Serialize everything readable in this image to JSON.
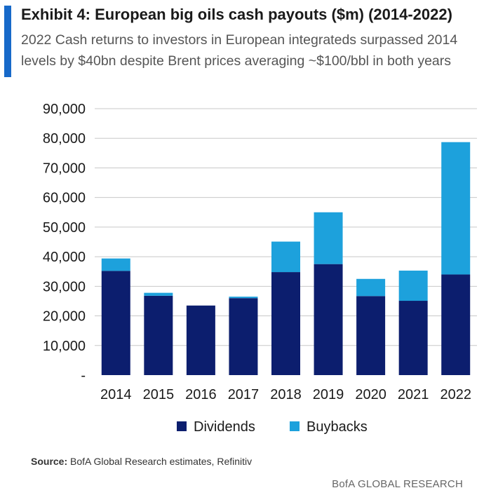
{
  "header": {
    "title": "Exhibit 4: European big oils cash payouts ($m) (2014-2022)",
    "subtitle": "2022 Cash returns to investors in European integrateds surpassed 2014 levels by $40bn despite Brent prices averaging ~$100/bbl in both years"
  },
  "footer": {
    "source_label": "Source:",
    "source_text": "BofA Global Research estimates, Refinitiv",
    "brand": "BofA GLOBAL RESEARCH"
  },
  "colors": {
    "accent": "#1769c9",
    "dividends": "#0c1e6e",
    "buybacks": "#1da1dc",
    "grid": "#c8c8c8"
  },
  "chart_data": {
    "type": "bar",
    "stacked": true,
    "title": "Exhibit 4: European big oils cash payouts ($m) (2014-2022)",
    "categories": [
      "2014",
      "2015",
      "2016",
      "2017",
      "2018",
      "2019",
      "2020",
      "2021",
      "2022"
    ],
    "series": [
      {
        "name": "Dividends",
        "color": "#0c1e6e",
        "values": [
          35200,
          26800,
          23500,
          26000,
          34800,
          37500,
          26700,
          25100,
          34000
        ]
      },
      {
        "name": "Buybacks",
        "color": "#1da1dc",
        "values": [
          4200,
          1000,
          0,
          500,
          10300,
          17500,
          5800,
          10200,
          44700
        ]
      }
    ],
    "ylim": [
      0,
      90000
    ],
    "yticks": [
      0,
      10000,
      20000,
      30000,
      40000,
      50000,
      60000,
      70000,
      80000,
      90000
    ],
    "ytick_labels": [
      "-",
      "10,000",
      "20,000",
      "30,000",
      "40,000",
      "50,000",
      "60,000",
      "70,000",
      "80,000",
      "90,000"
    ],
    "grid": true,
    "legend_position": "bottom"
  }
}
